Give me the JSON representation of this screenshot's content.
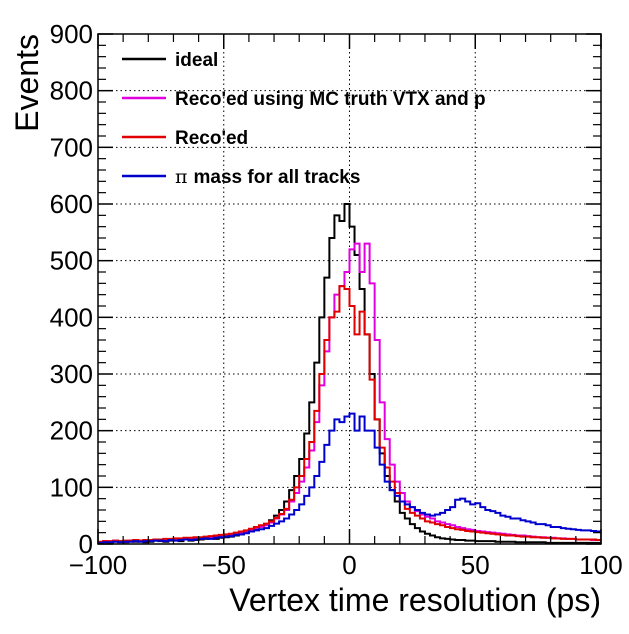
{
  "chart_data": {
    "type": "histogram",
    "xlabel": "Vertex time resolution (ps)",
    "ylabel": "Events",
    "xlim": [
      -100,
      100
    ],
    "ylim": [
      0,
      900
    ],
    "xticks": [
      -100,
      -50,
      0,
      50,
      100
    ],
    "xtick_labels": [
      "−100",
      "−50",
      "0",
      "50",
      "100"
    ],
    "yticks": [
      0,
      100,
      200,
      300,
      400,
      500,
      600,
      700,
      800,
      900
    ],
    "ytick_labels": [
      "0",
      "100",
      "200",
      "300",
      "400",
      "500",
      "600",
      "700",
      "800",
      "900"
    ],
    "grid": true,
    "bin_width": 2,
    "bin_centers": [
      -99,
      -97,
      -95,
      -93,
      -91,
      -89,
      -87,
      -85,
      -83,
      -81,
      -79,
      -77,
      -75,
      -73,
      -71,
      -69,
      -67,
      -65,
      -63,
      -61,
      -59,
      -57,
      -55,
      -53,
      -51,
      -49,
      -47,
      -45,
      -43,
      -41,
      -39,
      -37,
      -35,
      -33,
      -31,
      -29,
      -27,
      -25,
      -23,
      -21,
      -19,
      -17,
      -15,
      -13,
      -11,
      -9,
      -7,
      -5,
      -3,
      -1,
      1,
      3,
      5,
      7,
      9,
      11,
      13,
      15,
      17,
      19,
      21,
      23,
      25,
      27,
      29,
      31,
      33,
      35,
      37,
      39,
      41,
      43,
      45,
      47,
      49,
      51,
      53,
      55,
      57,
      59,
      61,
      63,
      65,
      67,
      69,
      71,
      73,
      75,
      77,
      79,
      81,
      83,
      85,
      87,
      89,
      91,
      93,
      95,
      97,
      99
    ],
    "legend_position": "top-left",
    "series": [
      {
        "name": "ideal",
        "legend_label": "ideal",
        "color": "#000000",
        "values": [
          2,
          4,
          3,
          5,
          4,
          3,
          6,
          4,
          5,
          3,
          4,
          6,
          5,
          4,
          6,
          7,
          5,
          8,
          6,
          7,
          8,
          9,
          10,
          9,
          11,
          12,
          13,
          15,
          17,
          20,
          23,
          26,
          30,
          35,
          42,
          50,
          60,
          75,
          95,
          120,
          150,
          195,
          250,
          320,
          400,
          470,
          540,
          580,
          570,
          600,
          560,
          510,
          450,
          370,
          300,
          220,
          160,
          120,
          95,
          75,
          55,
          45,
          35,
          28,
          22,
          18,
          15,
          12,
          10,
          9,
          8,
          7,
          7,
          6,
          6,
          5,
          5,
          5,
          5,
          4,
          4,
          4,
          4,
          3,
          3,
          3,
          3,
          3,
          3,
          2,
          2,
          2,
          2,
          2,
          2,
          2,
          2,
          2,
          2,
          2
        ]
      },
      {
        "name": "Reco'ed using MC truth VTX and p",
        "legend_label": "Reco'ed using MC truth VTX and p",
        "color": "#e000e0",
        "values": [
          3,
          5,
          4,
          6,
          5,
          4,
          6,
          5,
          6,
          5,
          6,
          7,
          6,
          6,
          7,
          8,
          8,
          9,
          9,
          10,
          10,
          11,
          12,
          13,
          14,
          15,
          16,
          18,
          20,
          22,
          25,
          28,
          30,
          33,
          38,
          45,
          52,
          60,
          75,
          90,
          110,
          135,
          165,
          215,
          280,
          340,
          400,
          440,
          455,
          480,
          520,
          530,
          480,
          530,
          460,
          360,
          250,
          185,
          140,
          110,
          90,
          75,
          65,
          58,
          52,
          48,
          45,
          40,
          38,
          35,
          33,
          30,
          28,
          26,
          25,
          23,
          22,
          21,
          20,
          19,
          18,
          17,
          16,
          15,
          15,
          14,
          13,
          12,
          12,
          11,
          11,
          10,
          10,
          9,
          9,
          8,
          8,
          8,
          7,
          7
        ]
      },
      {
        "name": "Reco'ed",
        "legend_label": "Reco'ed",
        "color": "#e00000",
        "values": [
          4,
          5,
          5,
          6,
          5,
          6,
          6,
          7,
          6,
          7,
          7,
          8,
          8,
          9,
          9,
          10,
          10,
          11,
          11,
          12,
          12,
          13,
          14,
          15,
          16,
          17,
          18,
          20,
          22,
          24,
          27,
          30,
          33,
          36,
          40,
          46,
          53,
          62,
          78,
          100,
          120,
          150,
          180,
          235,
          300,
          360,
          400,
          410,
          455,
          450,
          420,
          370,
          410,
          370,
          290,
          220,
          170,
          135,
          110,
          90,
          75,
          62,
          55,
          50,
          45,
          40,
          38,
          35,
          33,
          30,
          28,
          26,
          25,
          23,
          22,
          21,
          20,
          19,
          18,
          17,
          16,
          15,
          15,
          14,
          13,
          13,
          12,
          12,
          11,
          11,
          10,
          10,
          9,
          9,
          9,
          8,
          8,
          8,
          8,
          7
        ]
      },
      {
        "name": "pi mass for all tracks",
        "legend_prefix": "π",
        "legend_label": "mass for all tracks",
        "color": "#0000cc",
        "values": [
          2,
          3,
          3,
          4,
          3,
          4,
          4,
          5,
          4,
          5,
          5,
          6,
          6,
          5,
          7,
          6,
          7,
          8,
          7,
          8,
          9,
          10,
          9,
          11,
          12,
          13,
          14,
          16,
          17,
          19,
          22,
          24,
          26,
          28,
          32,
          36,
          40,
          45,
          52,
          60,
          70,
          85,
          100,
          120,
          145,
          175,
          200,
          220,
          215,
          225,
          230,
          200,
          225,
          200,
          200,
          170,
          140,
          110,
          95,
          85,
          75,
          70,
          65,
          60,
          55,
          52,
          50,
          52,
          55,
          60,
          65,
          78,
          80,
          75,
          70,
          72,
          65,
          60,
          58,
          55,
          50,
          48,
          45,
          45,
          42,
          40,
          38,
          35,
          35,
          33,
          30,
          30,
          28,
          27,
          26,
          25,
          24,
          24,
          23,
          22
        ]
      }
    ]
  }
}
